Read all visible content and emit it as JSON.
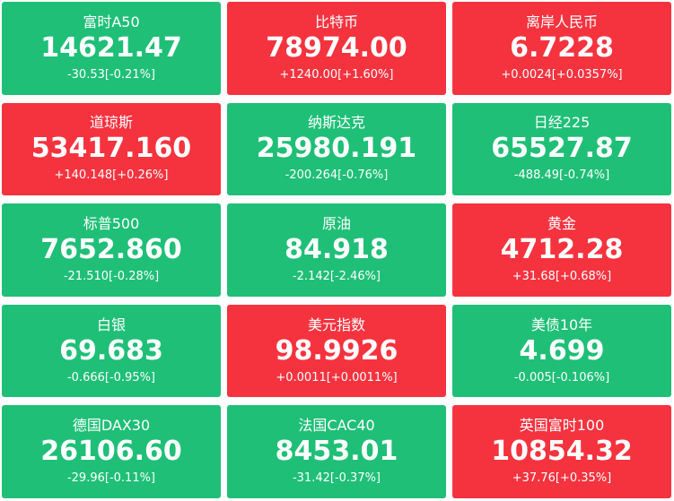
{
  "tiles": [
    {
      "name": "富时A50",
      "price": "14621.47",
      "change": "-30.53[-0.21%]",
      "color": "#1fbf77"
    },
    {
      "name": "比特币",
      "price": "78974.00",
      "change": "+1240.00[+1.60%]",
      "color": "#f5333f"
    },
    {
      "name": "离岸人民币",
      "price": "6.7228",
      "change": "+0.0024[+0.0357%]",
      "color": "#f5333f"
    },
    {
      "name": "道琼斯",
      "price": "53417.160",
      "change": "+140.148[+0.26%]",
      "color": "#f5333f"
    },
    {
      "name": "纳斯达克",
      "price": "25980.191",
      "change": "-200.264[-0.76%]",
      "color": "#1fbf77"
    },
    {
      "name": "日经225",
      "price": "65527.87",
      "change": "-488.49[-0.74%]",
      "color": "#1fbf77"
    },
    {
      "name": "标普500",
      "price": "7652.860",
      "change": "-21.510[-0.28%]",
      "color": "#1fbf77"
    },
    {
      "name": "原油",
      "price": "84.918",
      "change": "-2.142[-2.46%]",
      "color": "#1fbf77"
    },
    {
      "name": "黄金",
      "price": "4712.28",
      "change": "+31.68[+0.68%]",
      "color": "#f5333f"
    },
    {
      "name": "白银",
      "price": "69.683",
      "change": "-0.666[-0.95%]",
      "color": "#1fbf77"
    },
    {
      "name": "美元指数",
      "price": "98.9926",
      "change": "+0.0011[+0.0011%]",
      "color": "#f5333f"
    },
    {
      "name": "美债10年",
      "price": "4.699",
      "change": "-0.005[-0.106%]",
      "color": "#1fbf77"
    },
    {
      "name": "德国DAX30",
      "price": "26106.60",
      "change": "-29.96[-0.11%]",
      "color": "#1fbf77"
    },
    {
      "name": "法国CAC40",
      "price": "8453.01",
      "change": "-31.42[-0.37%]",
      "color": "#1fbf77"
    },
    {
      "name": "英国富时100",
      "price": "10854.32",
      "change": "+37.76[+0.35%]",
      "color": "#f5333f"
    }
  ]
}
